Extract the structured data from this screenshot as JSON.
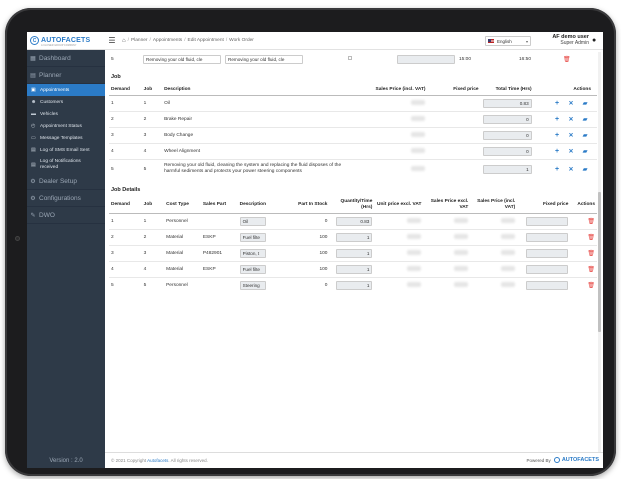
{
  "app": {
    "logo_text": "AUTOFACETS",
    "logo_tagline": "A CLOSER GROUP COMPANY"
  },
  "topbar": {
    "breadcrumbs": [
      "Planner",
      "Appointments",
      "Edit Appointment",
      "Work Order"
    ],
    "language": "English",
    "user_name": "AF demo user",
    "user_role": "Super Admin"
  },
  "sidebar": {
    "sections": [
      {
        "label": "Dashboard",
        "icon": "dashboard-icon"
      },
      {
        "label": "Planner",
        "icon": "calendar-icon"
      }
    ],
    "planner_items": [
      {
        "label": "Appointments",
        "icon": "calendar-icon",
        "active": true
      },
      {
        "label": "Customers",
        "icon": "users-icon"
      },
      {
        "label": "Vehicles",
        "icon": "car-icon"
      },
      {
        "label": "Appointment Status",
        "icon": "status-icon"
      },
      {
        "label": "Message Templates",
        "icon": "template-icon"
      },
      {
        "label": "Log of SMS Email Sent",
        "icon": "log-icon"
      },
      {
        "label": "Log of Notifications received",
        "icon": "bell-icon"
      }
    ],
    "more_sections": [
      {
        "label": "Dealer Setup",
        "icon": "gear-icon"
      },
      {
        "label": "Configurations",
        "icon": "cogs-icon"
      },
      {
        "label": "DWO",
        "icon": "wrench-icon"
      }
    ],
    "version": "Version : 2.0"
  },
  "top_partial_row": {
    "demand": "5",
    "field1": "Removing your old fluid, cle",
    "field2": "Removing your old fluid, cle",
    "start": "15:00",
    "end": "16:50"
  },
  "job": {
    "title": "Job",
    "headers": [
      "Demand",
      "Job",
      "Description",
      "Sales Price (incl. VAT)",
      "Fixed price",
      "Total Time (Hrs)",
      "Actions"
    ],
    "rows": [
      {
        "demand": "1",
        "job": "1",
        "description": "Oil",
        "total_time": "0.83"
      },
      {
        "demand": "2",
        "job": "2",
        "description": "Brake Repair",
        "total_time": "0"
      },
      {
        "demand": "3",
        "job": "3",
        "description": "Body Change",
        "total_time": "0"
      },
      {
        "demand": "4",
        "job": "4",
        "description": "Wheel Alignment",
        "total_time": "0"
      },
      {
        "demand": "5",
        "job": "5",
        "description": "Removing your old fluid, cleaning the system and replacing the fluid disposes of the harmful sediments and protects your power steering components",
        "total_time": "1"
      }
    ]
  },
  "job_details": {
    "title": "Job Details",
    "headers": [
      "Demand",
      "Job",
      "Cost Type",
      "Sales Part",
      "Description",
      "Part In Stock",
      "Quantity/Time (Hrs)",
      "Unit price excl. VAT",
      "Sales Price excl. VAT",
      "Sales Price (incl. VAT)",
      "Fixed price",
      "Actions"
    ],
    "rows": [
      {
        "demand": "1",
        "job": "1",
        "cost_type": "Personnel",
        "sales_part": "",
        "description": "Oil",
        "in_stock": "0",
        "qty": "0.83"
      },
      {
        "demand": "2",
        "job": "2",
        "cost_type": "Material",
        "sales_part": "ESKP",
        "description": "Fuel filte",
        "in_stock": "100",
        "qty": "1"
      },
      {
        "demand": "3",
        "job": "3",
        "cost_type": "Material",
        "sales_part": "P482901",
        "description": "Piston, t",
        "in_stock": "100",
        "qty": "1"
      },
      {
        "demand": "4",
        "job": "4",
        "cost_type": "Material",
        "sales_part": "ESKP",
        "description": "Fuel filte",
        "in_stock": "100",
        "qty": "1"
      },
      {
        "demand": "5",
        "job": "5",
        "cost_type": "Personnel",
        "sales_part": "",
        "description": "Steering",
        "in_stock": "0",
        "qty": "1"
      }
    ]
  },
  "footer": {
    "copyright_prefix": "© 2021 Copyright",
    "copyright_brand": "Autofacets",
    "copyright_suffix": ". All rights reserved.",
    "powered_by": "Powered By",
    "powered_brand": "AUTOFACETS"
  },
  "colors": {
    "sidebar_bg": "#2e3a48",
    "accent": "#2b7bc7",
    "danger": "#e53935"
  }
}
